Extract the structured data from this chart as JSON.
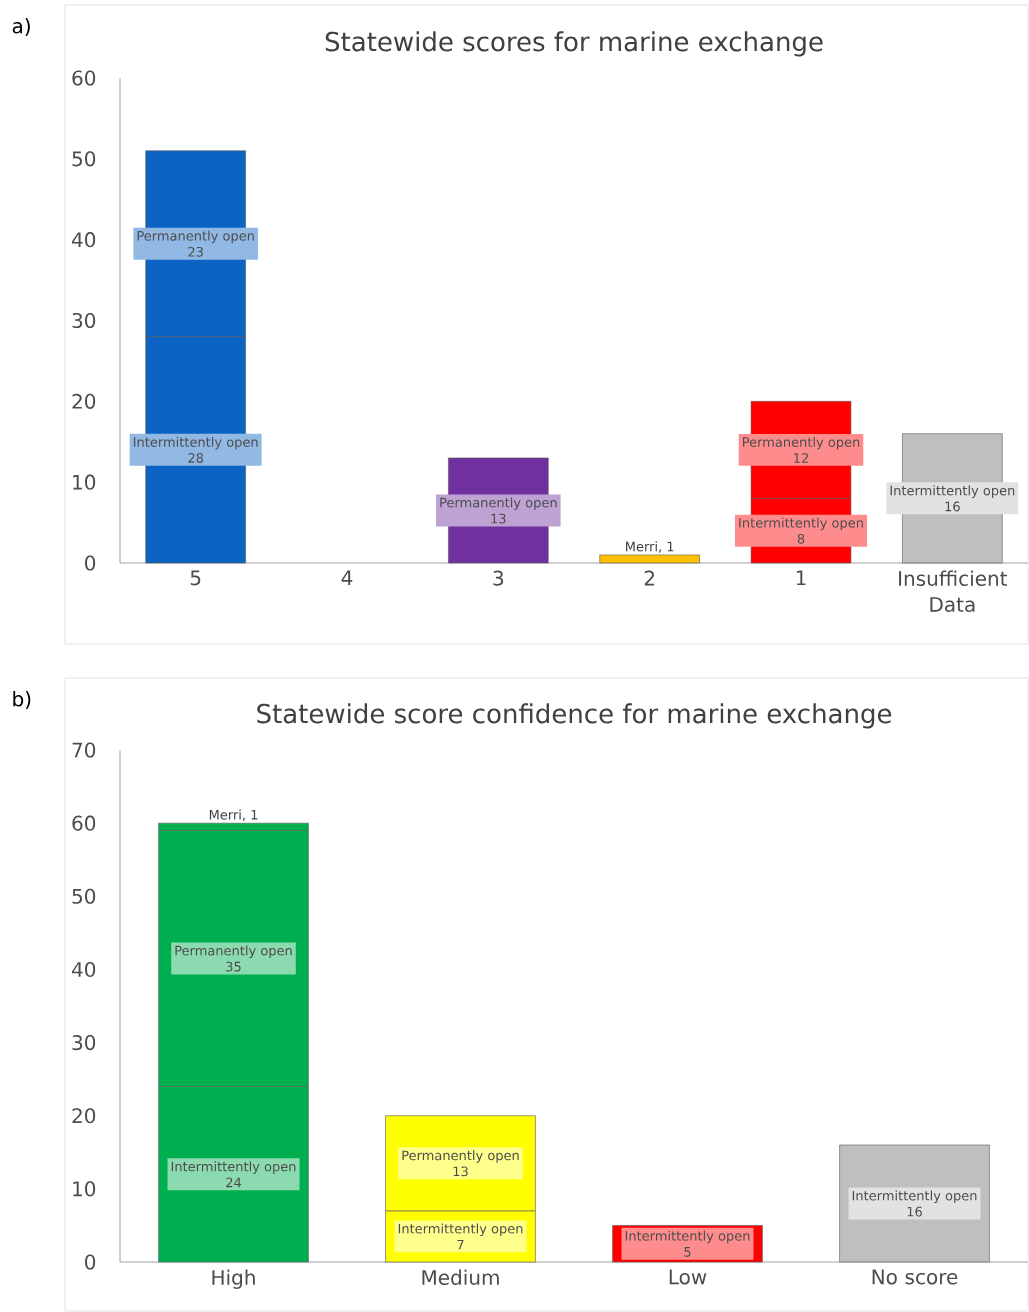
{
  "chart_data": [
    {
      "type": "bar",
      "title": "Statewide scores for marine exchange",
      "annotations": [
        "a)"
      ],
      "stacked": true,
      "data_labels": true,
      "categories": [
        "5",
        "4",
        "3",
        "2",
        "1",
        "Insufficient Data"
      ],
      "ylim": [
        0,
        60
      ],
      "yticks": [
        0,
        10,
        20,
        30,
        40,
        50,
        60
      ],
      "series": [
        {
          "name": "Intermittently open",
          "values": [
            28,
            null,
            null,
            null,
            8,
            16
          ],
          "colors": [
            "#0b64c4",
            null,
            null,
            null,
            "#ff0000",
            "#bfbfbf"
          ]
        },
        {
          "name": "Permanently open",
          "values": [
            23,
            null,
            13,
            null,
            12,
            null
          ],
          "colors": [
            "#0b64c4",
            null,
            "#7030a0",
            null,
            "#ff0000",
            null
          ]
        },
        {
          "values": [
            null,
            null,
            null,
            1,
            null,
            null
          ],
          "value_labels": [
            null,
            null,
            null,
            "Merri, 1",
            null,
            null
          ],
          "colors": [
            null,
            null,
            null,
            "#ffc000",
            null,
            null
          ]
        }
      ]
    },
    {
      "type": "bar",
      "title": "Statewide score confidence for marine exchange",
      "annotations": [
        "b)"
      ],
      "stacked": true,
      "data_labels": true,
      "categories": [
        "High",
        "Medium",
        "Low",
        "No score"
      ],
      "ylim": [
        0,
        70
      ],
      "yticks": [
        0,
        10,
        20,
        30,
        40,
        50,
        60,
        70
      ],
      "series": [
        {
          "name": "Intermittently open",
          "values": [
            24,
            7,
            5,
            16
          ],
          "colors": [
            "#00b050",
            "#ffff00",
            "#ff0000",
            "#bfbfbf"
          ]
        },
        {
          "name": "Permanently open",
          "values": [
            35,
            13,
            null,
            null
          ],
          "colors": [
            "#00b050",
            "#ffff00",
            null,
            null
          ]
        },
        {
          "values": [
            1,
            null,
            null,
            null
          ],
          "value_labels": [
            "Merri, 1",
            null,
            null,
            null
          ],
          "colors": [
            "#00b050",
            null,
            null,
            null
          ]
        }
      ]
    }
  ]
}
